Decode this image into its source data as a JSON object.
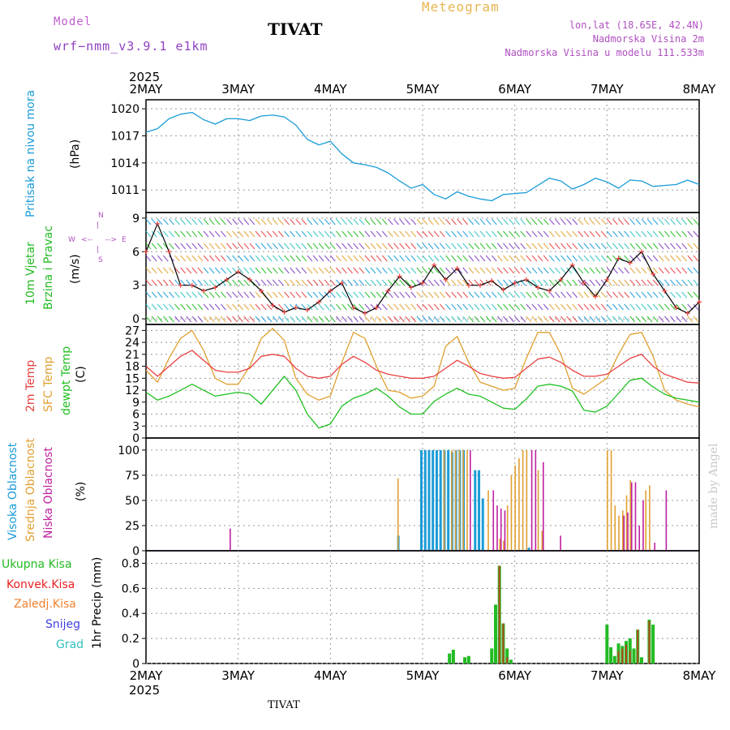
{
  "header": {
    "model_label": "Model",
    "model_name": "wrf−nmm_v3.9.1  e1km",
    "station": "TIVAT",
    "title": "Meteogram",
    "lonlat": "lon,lat (18.65E, 42.4N)",
    "elevation": "Nadmorska Visina 2m",
    "model_elevation": "Nadmorska Visina u modelu 111.533m"
  },
  "footer": {
    "station": "TIVAT",
    "credit": "made by Angel"
  },
  "time_axis": {
    "year": "2025",
    "labels": [
      "2MAY",
      "3MAY",
      "4MAY",
      "5MAY",
      "6MAY",
      "7MAY",
      "8MAY"
    ]
  },
  "colors": {
    "pressure": "#1a9bd7",
    "temp2m": "#e84040",
    "sfc_temp": "#e0a030",
    "dewpoint": "#20c020",
    "cloud_high": "#1a9bd7",
    "cloud_mid": "#e0a030",
    "cloud_low": "#c020a0",
    "precip_total": "#22bb22",
    "precip_conv": "#e82020",
    "precip_frozen": "#f08030",
    "snow": "#4040e0",
    "graupel": "#30c0c0",
    "wind_fill": "#22bb22"
  },
  "panels": {
    "pressure": {
      "ylabel1": "Pritisak na nivou mora",
      "ylabel2": "(hPa)",
      "ticks": [
        "1020",
        "1017",
        "1014",
        "1011"
      ]
    },
    "wind": {
      "ylabel1": "10m Vjetar",
      "ylabel2": "Brzina i Pravac",
      "ylabel3": "(m/s)",
      "ticks": [
        "9",
        "6",
        "3",
        "0"
      ],
      "compass": {
        "n": "N",
        "s": "S",
        "e": "E",
        "w": "W"
      }
    },
    "temp": {
      "ylabel1": "2m Temp",
      "ylabel2": "SFC Temp",
      "ylabel3": "dewpt Temp",
      "ylabel4": "(C)",
      "ticks": [
        "27",
        "24",
        "21",
        "18",
        "15",
        "12",
        "9",
        "6",
        "3",
        "0"
      ]
    },
    "cloud": {
      "ylabel1": "Visoka Oblacnost",
      "ylabel2": "Srednja Oblacnost",
      "ylabel3": "Niska Oblacnost",
      "ylabel4": "(%)",
      "ticks": [
        "100",
        "75",
        "50",
        "25",
        "0"
      ]
    },
    "precip": {
      "legend": [
        "Ukupna Kisa",
        "Konvek.Kisa",
        "Zaledj.Kisa",
        "Snijeg",
        "Grad"
      ],
      "ylabel": "1hr Precip (mm)",
      "ticks": [
        "0.8",
        "0.6",
        "0.4",
        "0.2",
        "0"
      ]
    }
  },
  "chart_data": [
    {
      "type": "line",
      "title": "",
      "ylabel": "Pritisak na nivou mora (hPa)",
      "ylim": [
        1008.5,
        1021
      ],
      "x_hours": [
        0,
        3,
        6,
        9,
        12,
        15,
        18,
        21,
        24,
        27,
        30,
        33,
        36,
        39,
        42,
        45,
        48,
        51,
        54,
        57,
        60,
        63,
        66,
        69,
        72,
        75,
        78,
        81,
        84,
        87,
        90,
        93,
        96,
        99,
        102,
        105,
        108,
        111,
        114,
        117,
        120,
        123,
        126,
        129,
        132,
        135,
        138,
        141,
        144
      ],
      "series": [
        {
          "name": "pressure",
          "values": [
            1017.4,
            1017.8,
            1018.9,
            1019.4,
            1019.6,
            1018.8,
            1018.3,
            1018.9,
            1018.9,
            1018.7,
            1019.2,
            1019.3,
            1019.1,
            1018.2,
            1016.6,
            1016.0,
            1016.4,
            1015.0,
            1014.0,
            1013.8,
            1013.5,
            1012.9,
            1012.0,
            1011.2,
            1011.6,
            1010.5,
            1010.0,
            1010.8,
            1010.3,
            1010.0,
            1009.8,
            1010.5,
            1010.6,
            1010.7,
            1011.5,
            1012.3,
            1012.0,
            1011.1,
            1011.6,
            1012.3,
            1011.9,
            1011.2,
            1012.1,
            1012.0,
            1011.4,
            1011.5,
            1011.6,
            1012.1,
            1011.6
          ]
        }
      ]
    },
    {
      "type": "line",
      "title": "",
      "ylabel": "10m Vjetar (m/s)",
      "ylim": [
        -0.5,
        9.5
      ],
      "x_hours": [
        0,
        3,
        6,
        9,
        12,
        15,
        18,
        21,
        24,
        27,
        30,
        33,
        36,
        39,
        42,
        45,
        48,
        51,
        54,
        57,
        60,
        63,
        66,
        69,
        72,
        75,
        78,
        81,
        84,
        87,
        90,
        93,
        96,
        99,
        102,
        105,
        108,
        111,
        114,
        117,
        120,
        123,
        126,
        129,
        132,
        135,
        138,
        141,
        144
      ],
      "series": [
        {
          "name": "wind_speed",
          "values": [
            6,
            8.5,
            6,
            3,
            3,
            2.5,
            2.8,
            3.5,
            4.2,
            3.5,
            2.5,
            1.2,
            0.6,
            1,
            0.8,
            1.5,
            2.5,
            3.2,
            1,
            0.5,
            1,
            2.5,
            3.8,
            2.8,
            3.2,
            4.8,
            3.5,
            4.5,
            3,
            3,
            3.4,
            2.6,
            3.2,
            3.5,
            2.8,
            2.5,
            3.5,
            4.8,
            3.2,
            2,
            3.5,
            5.4,
            5,
            6,
            4,
            2.5,
            1,
            0.5,
            1.5
          ]
        }
      ]
    },
    {
      "type": "line",
      "title": "",
      "ylabel": "Temp (C)",
      "ylim": [
        0,
        28.5
      ],
      "x_hours": [
        0,
        3,
        6,
        9,
        12,
        15,
        18,
        21,
        24,
        27,
        30,
        33,
        36,
        39,
        42,
        45,
        48,
        51,
        54,
        57,
        60,
        63,
        66,
        69,
        72,
        75,
        78,
        81,
        84,
        87,
        90,
        93,
        96,
        99,
        102,
        105,
        108,
        111,
        114,
        117,
        120,
        123,
        126,
        129,
        132,
        135,
        138,
        141,
        144
      ],
      "series": [
        {
          "name": "temp2m",
          "values": [
            18,
            15.5,
            18,
            20.5,
            22,
            19.5,
            17,
            16.5,
            16.5,
            17.5,
            20.5,
            21,
            20.5,
            17.5,
            15.5,
            15,
            15.5,
            18.5,
            20.5,
            19,
            17,
            16,
            15.5,
            15,
            15,
            15.5,
            17.5,
            19.5,
            18,
            16.2,
            15.5,
            15,
            15.2,
            17.5,
            19.8,
            20.3,
            19,
            17,
            15.5,
            15.5,
            16,
            18,
            20,
            21,
            18,
            16,
            15,
            14,
            13.8
          ]
        },
        {
          "name": "sfc_temp",
          "values": [
            17,
            14,
            20,
            25,
            27,
            22,
            15,
            13.5,
            13.5,
            18,
            25,
            27.5,
            24.5,
            15,
            11,
            9.5,
            10.5,
            19,
            26.5,
            25,
            18,
            12,
            11.5,
            10,
            10.5,
            13,
            23,
            25.5,
            19,
            14,
            13,
            12,
            12.5,
            20,
            26.5,
            26.5,
            21,
            12.5,
            11,
            13,
            15,
            21,
            26,
            26.5,
            20.5,
            12,
            9.5,
            8.5,
            7.8
          ]
        },
        {
          "name": "dewpoint",
          "values": [
            11.5,
            9.5,
            10.5,
            12,
            13.5,
            12,
            10.5,
            11,
            11.5,
            11,
            8.5,
            12,
            15.5,
            12,
            6,
            2.5,
            3.5,
            8,
            10,
            11,
            12.5,
            10.5,
            7.8,
            6,
            6,
            9.2,
            11,
            12.5,
            11,
            10.5,
            9,
            7.5,
            7.2,
            9.8,
            13,
            13.5,
            13,
            11.8,
            7,
            6.5,
            8,
            11.2,
            14.5,
            15,
            12.8,
            11,
            10,
            9.5,
            9
          ]
        }
      ]
    },
    {
      "type": "bar",
      "title": "",
      "ylabel": "Oblacnost (%)",
      "ylim": [
        0,
        100
      ],
      "series": [
        {
          "name": "high",
          "x_hours": [
            66,
            72,
            73,
            74,
            75,
            76,
            77,
            78,
            79,
            80,
            81,
            82,
            83,
            86,
            87,
            88,
            100
          ],
          "values": [
            15,
            100,
            100,
            100,
            100,
            100,
            100,
            100,
            100,
            98,
            100,
            100,
            100,
            80,
            80,
            52,
            3
          ]
        },
        {
          "name": "mid",
          "x_hours": [
            65.5,
            77.5,
            79.5,
            80.5,
            81.5,
            82.5,
            83.5,
            89,
            92,
            93,
            94,
            95,
            96,
            97,
            98,
            99,
            102,
            103,
            120,
            121,
            122,
            123,
            124,
            125,
            126,
            130,
            131
          ],
          "values": [
            72,
            100,
            100,
            100,
            100,
            100,
            100,
            60,
            12,
            10,
            45,
            75,
            85,
            92,
            100,
            100,
            80,
            20,
            100,
            100,
            45,
            35,
            40,
            55,
            70,
            60,
            65
          ]
        },
        {
          "name": "low",
          "x_hours": [
            21.5,
            84,
            90,
            91,
            92,
            93,
            100,
            101,
            103,
            107.5,
            124,
            125,
            126,
            127,
            128,
            129,
            132,
            135
          ],
          "values": [
            22,
            100,
            60,
            45,
            42,
            40,
            100,
            100,
            88,
            15,
            35,
            38,
            68,
            68,
            25,
            50,
            8,
            60
          ]
        }
      ]
    },
    {
      "type": "bar",
      "title": "",
      "ylabel": "1hr Precip (mm)",
      "ylim": [
        0,
        0.9
      ],
      "series": [
        {
          "name": "total",
          "x_hours": [
            79,
            80,
            83,
            84,
            90,
            91,
            92,
            93,
            94,
            95,
            120,
            121,
            122,
            123,
            124,
            125,
            126,
            127,
            128,
            129,
            131,
            132
          ],
          "values": [
            0.08,
            0.11,
            0.05,
            0.06,
            0.12,
            0.47,
            0.78,
            0.32,
            0.12,
            0.03,
            0.31,
            0.13,
            0.06,
            0.16,
            0.14,
            0.18,
            0.2,
            0.12,
            0.27,
            0.05,
            0.35,
            0.31
          ]
        },
        {
          "name": "convective",
          "x_hours": [
            92,
            93,
            94,
            123,
            124,
            125,
            126,
            128,
            131
          ],
          "values": [
            0.78,
            0.32,
            0.05,
            0.1,
            0.12,
            0.15,
            0.1,
            0.27,
            0.34
          ]
        }
      ]
    }
  ]
}
